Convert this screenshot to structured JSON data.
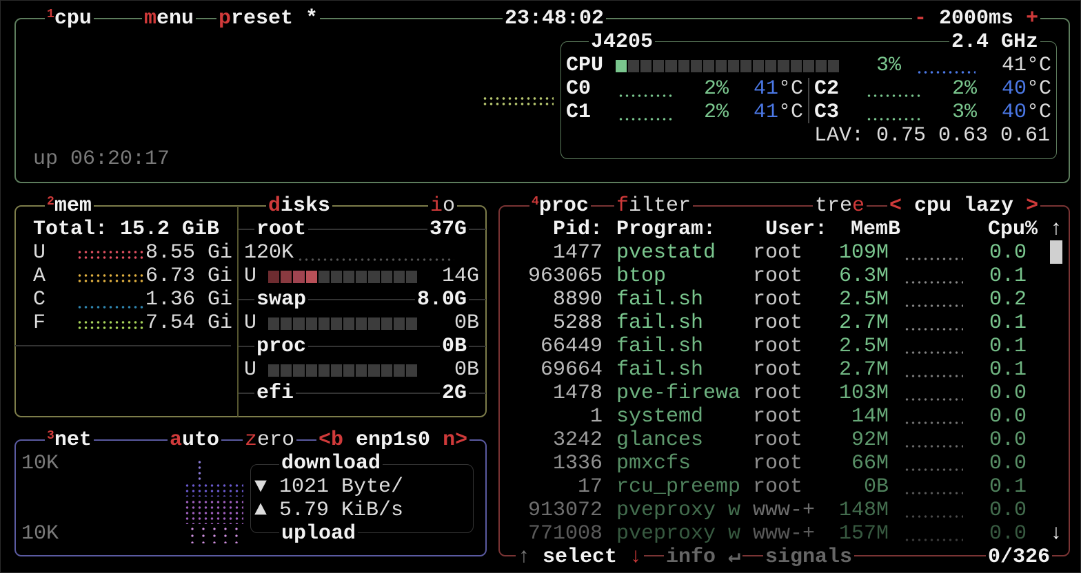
{
  "cpu_box": {
    "number": "1",
    "title": "cpu",
    "menu_label": "menu",
    "preset_label": "preset *",
    "clock": "23:48:02",
    "minus": "-",
    "interval": "2000ms",
    "plus": "+",
    "model": "J4205",
    "freq": "2.4 GHz",
    "total": {
      "label": "CPU",
      "percent": "3%",
      "temp": "41°C",
      "usage_fraction": 0.03
    },
    "cores": [
      {
        "label": "C0",
        "percent": "2%",
        "temp": "41",
        "unit": "°C"
      },
      {
        "label": "C1",
        "percent": "2%",
        "temp": "41",
        "unit": "°C"
      },
      {
        "label": "C2",
        "percent": "2%",
        "temp": "40",
        "unit": "°C"
      },
      {
        "label": "C3",
        "percent": "3%",
        "temp": "40",
        "unit": "°C"
      }
    ],
    "load_avg": "LAV: 0.75 0.63 0.61",
    "uptime": "up 06:20:17"
  },
  "mem_box": {
    "number": "2",
    "title": "mem",
    "disks_label": "disks",
    "io_label": "io",
    "total": "Total: 15.2 GiB",
    "rows": [
      {
        "label": "U",
        "value": "8.55 Gi",
        "color": "#e05060"
      },
      {
        "label": "A",
        "value": "6.73 Gi",
        "color": "#e0b040"
      },
      {
        "label": "C",
        "value": "1.36 Gi",
        "color": "#2f86b0"
      },
      {
        "label": "F",
        "value": "7.54 Gi",
        "color": "#a8d45a"
      }
    ],
    "disks": [
      {
        "name": "root",
        "size": "37G",
        "io": "120K",
        "used_label": "U",
        "used": "14G",
        "used_fraction": 0.33
      },
      {
        "name": "swap",
        "size": "8.0G",
        "used_label": "U",
        "used": "0B",
        "used_fraction": 0
      },
      {
        "name": "proc",
        "size": "0B",
        "used_label": "U",
        "used": "0B",
        "used_fraction": 0
      },
      {
        "name": "efi",
        "size": "2G"
      }
    ]
  },
  "net_box": {
    "number": "3",
    "title": "net",
    "auto": "auto",
    "zero": "zero",
    "prev": "<b",
    "iface": "enp1s0",
    "next": "n>",
    "scale_top": "10K",
    "scale_bottom": "10K",
    "download_label": "download",
    "download_icon": "▼",
    "download": "1021 Byte/",
    "upload_icon": "▲",
    "upload": "5.79 KiB/s",
    "upload_label": "upload"
  },
  "proc_box": {
    "number": "4",
    "title": "proc",
    "filter": "filter",
    "tree": "tree",
    "sort_prev": "<",
    "sort": "cpu lazy",
    "sort_next": ">",
    "headers": {
      "pid": "Pid:",
      "program": "Program:",
      "user": "User:",
      "mem": "MemB",
      "cpu": "Cpu%"
    },
    "scroll_up": "↑",
    "scroll_down": "↓",
    "rows": [
      {
        "pid": "1477",
        "program": "pvestatd",
        "user": "root",
        "mem": "109M",
        "cpu": "0.0"
      },
      {
        "pid": "963065",
        "program": "btop",
        "user": "root",
        "mem": "6.3M",
        "cpu": "0.1"
      },
      {
        "pid": "8890",
        "program": "fail.sh",
        "user": "root",
        "mem": "2.5M",
        "cpu": "0.2"
      },
      {
        "pid": "5288",
        "program": "fail.sh",
        "user": "root",
        "mem": "2.7M",
        "cpu": "0.1"
      },
      {
        "pid": "66449",
        "program": "fail.sh",
        "user": "root",
        "mem": "2.5M",
        "cpu": "0.1"
      },
      {
        "pid": "69664",
        "program": "fail.sh",
        "user": "root",
        "mem": "2.7M",
        "cpu": "0.1"
      },
      {
        "pid": "1478",
        "program": "pve-firewa",
        "user": "root",
        "mem": "103M",
        "cpu": "0.0"
      },
      {
        "pid": "1",
        "program": "systemd",
        "user": "root",
        "mem": "14M",
        "cpu": "0.0"
      },
      {
        "pid": "3242",
        "program": "glances",
        "user": "root",
        "mem": "92M",
        "cpu": "0.0"
      },
      {
        "pid": "1336",
        "program": "pmxcfs",
        "user": "root",
        "mem": "66M",
        "cpu": "0.0"
      },
      {
        "pid": "17",
        "program": "rcu_preemp",
        "user": "root",
        "mem": "0B",
        "cpu": "0.1"
      },
      {
        "pid": "913072",
        "program": "pveproxy w",
        "user": "www-+",
        "mem": "148M",
        "cpu": "0.0"
      },
      {
        "pid": "771008",
        "program": "pveproxy w",
        "user": "www-+",
        "mem": "157M",
        "cpu": "0.0"
      }
    ],
    "footer": {
      "up": "↑",
      "select": "select",
      "down": "↓",
      "info": "info",
      "enter": "↵",
      "signals": "signals",
      "count": "0/326"
    }
  },
  "colors": {
    "cpu_border": "#5d7d5d",
    "mem_border": "#7d7d4a",
    "net_border": "#5a5aa0",
    "proc_border": "#7a3434",
    "accent": "#d03a3a",
    "green": "#7ac68e",
    "blue": "#4b78e6"
  }
}
